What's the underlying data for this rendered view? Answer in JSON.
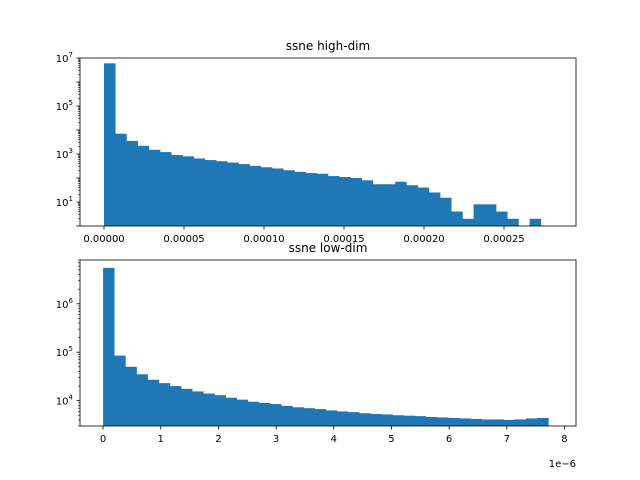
{
  "chart_data": [
    {
      "type": "bar",
      "title": "ssne high-dim",
      "xlabel": "",
      "ylabel": "",
      "yscale": "log",
      "ylim": [
        1,
        10000000
      ],
      "xlim": [
        -1.5e-05,
        0.000295
      ],
      "grid": false,
      "color": "#1f77b4",
      "xticks": [
        0.0,
        5e-05,
        0.0001,
        0.00015,
        0.0002,
        0.00025
      ],
      "xtick_labels": [
        "0.00000",
        "0.00005",
        "0.00010",
        "0.00015",
        "0.00020",
        "0.00025"
      ],
      "yticks": [
        10,
        1000,
        100000,
        10000000
      ],
      "ytick_labels": [
        {
          "base": "10",
          "exp": "1"
        },
        {
          "base": "10",
          "exp": "3"
        },
        {
          "base": "10",
          "exp": "5"
        },
        {
          "base": "10",
          "exp": "7"
        }
      ],
      "bins": {
        "start": 0.0,
        "width": 7e-06
      },
      "values": [
        6000000,
        7000,
        3500,
        2200,
        1500,
        1200,
        900,
        800,
        650,
        560,
        500,
        440,
        380,
        320,
        280,
        250,
        210,
        180,
        160,
        150,
        120,
        110,
        100,
        80,
        55,
        55,
        70,
        50,
        40,
        25,
        15,
        4,
        2,
        8,
        8,
        4,
        2,
        0,
        2
      ]
    },
    {
      "type": "bar",
      "title": "ssne low-dim",
      "xlabel": "",
      "ylabel": "",
      "yscale": "log",
      "ylim": [
        3000,
        8000000
      ],
      "xlim": [
        -4e-07,
        8.2e-06
      ],
      "grid": false,
      "color": "#1f77b4",
      "offset_text": "1e−6",
      "xticks": [
        0,
        1e-06,
        2e-06,
        3e-06,
        4e-06,
        5e-06,
        6e-06,
        7e-06,
        8e-06
      ],
      "xtick_labels": [
        "0",
        "1",
        "2",
        "3",
        "4",
        "5",
        "6",
        "7",
        "8"
      ],
      "yticks": [
        10000,
        100000,
        1000000
      ],
      "ytick_labels": [
        {
          "base": "10",
          "exp": "4"
        },
        {
          "base": "10",
          "exp": "5"
        },
        {
          "base": "10",
          "exp": "6"
        }
      ],
      "bins": {
        "start": 0.0,
        "width": 1.93e-07
      },
      "values": [
        5500000,
        85000,
        50000,
        35000,
        27000,
        23000,
        20000,
        17500,
        15500,
        14000,
        13000,
        11500,
        10500,
        9500,
        9000,
        8500,
        7800,
        7300,
        7000,
        6700,
        6300,
        6000,
        5800,
        5500,
        5300,
        5200,
        5000,
        4900,
        4800,
        4600,
        4500,
        4400,
        4300,
        4200,
        4100,
        4100,
        4000,
        4100,
        4300,
        4400
      ]
    }
  ]
}
